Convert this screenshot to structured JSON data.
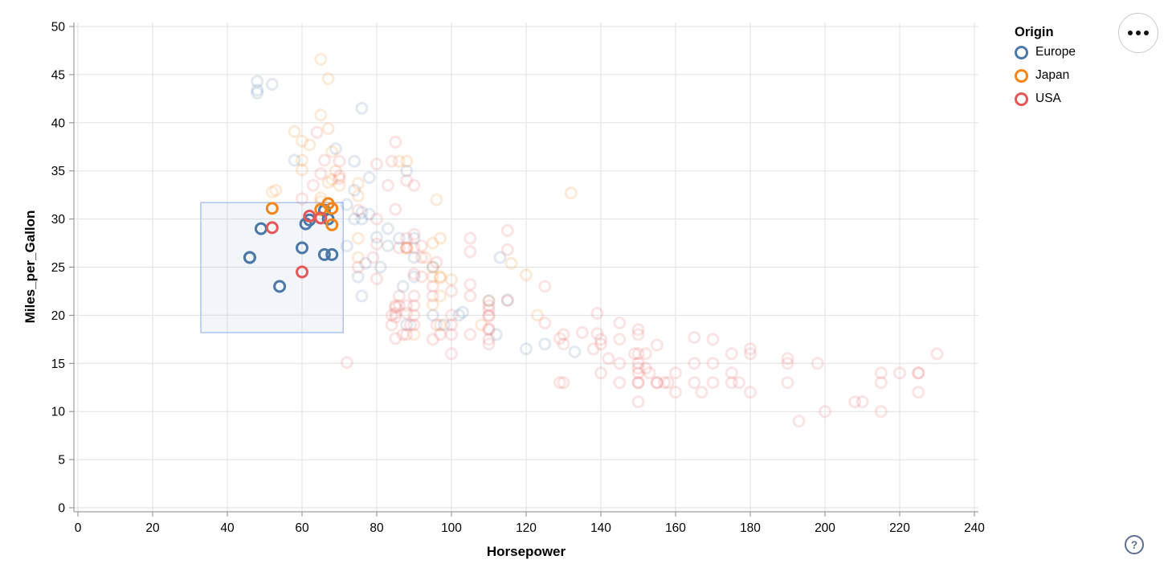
{
  "page": {
    "background": "#ffffff"
  },
  "widgets": {
    "actions_menu_icon": "ellipsis",
    "help_icon_glyph": "?"
  },
  "chart_data": {
    "type": "scatter",
    "title": "",
    "xlabel": "Horsepower",
    "ylabel": "Miles_per_Gallon",
    "xlim": [
      0,
      240
    ],
    "ylim": [
      0,
      50
    ],
    "x_ticks": [
      0,
      20,
      40,
      60,
      80,
      100,
      120,
      140,
      160,
      180,
      200,
      220,
      240
    ],
    "y_ticks": [
      0,
      5,
      10,
      15,
      20,
      25,
      30,
      35,
      40,
      45,
      50
    ],
    "grid": true,
    "legend_position": "top-right",
    "point_shape": "open-circle",
    "unselected_opacity": 0.16,
    "selected_opacity": 1.0,
    "brush": {
      "hp_range": [
        32.9,
        71.0
      ],
      "mpg_range": [
        18.2,
        31.7
      ],
      "fill": "#6e96d8",
      "fill_opacity": 0.09,
      "stroke": "#aec3ef"
    },
    "legend": {
      "title": "Origin",
      "entries": [
        {
          "label": "Europe",
          "color": "#4c78a8"
        },
        {
          "label": "Japan",
          "color": "#f58518"
        },
        {
          "label": "USA",
          "color": "#e45756"
        }
      ]
    },
    "series": [
      {
        "name": "Europe",
        "color": "#4c78a8",
        "points": [
          [
            46,
            26
          ],
          [
            46,
            26
          ],
          [
            49,
            29
          ],
          [
            54,
            23
          ],
          [
            60,
            27
          ],
          [
            61,
            29.5
          ],
          [
            62,
            29.9
          ],
          [
            66,
            30.9
          ],
          [
            67,
            30
          ],
          [
            66,
            26.3
          ],
          [
            68,
            26.3
          ],
          [
            48,
            44.3
          ],
          [
            48,
            43.4
          ],
          [
            48,
            43.1
          ],
          [
            52,
            44
          ],
          [
            76,
            41.5
          ],
          [
            69,
            37.3
          ],
          [
            58,
            36.1
          ],
          [
            74,
            36
          ],
          [
            88,
            35
          ],
          [
            78,
            34.3
          ],
          [
            74,
            33
          ],
          [
            72,
            31.5
          ],
          [
            76,
            30.7
          ],
          [
            78,
            30.5
          ],
          [
            76,
            30
          ],
          [
            74,
            30
          ],
          [
            83,
            29
          ],
          [
            86,
            28
          ],
          [
            90,
            28
          ],
          [
            80,
            28.1
          ],
          [
            83,
            27.2
          ],
          [
            72,
            27.2
          ],
          [
            90,
            26
          ],
          [
            113,
            26
          ],
          [
            77,
            25.4
          ],
          [
            95,
            25
          ],
          [
            81,
            25
          ],
          [
            75,
            24
          ],
          [
            90,
            24
          ],
          [
            87,
            23
          ],
          [
            76,
            22
          ],
          [
            110,
            21.5
          ],
          [
            115,
            21.6
          ],
          [
            102,
            20
          ],
          [
            103,
            20.3
          ],
          [
            95,
            20
          ],
          [
            98,
            19
          ],
          [
            88,
            19
          ],
          [
            112,
            18
          ],
          [
            125,
            17
          ],
          [
            120,
            16.5
          ],
          [
            133,
            16.2
          ]
        ]
      },
      {
        "name": "Japan",
        "color": "#f58518",
        "points": [
          [
            52,
            31.1
          ],
          [
            65,
            31
          ],
          [
            67,
            31.6
          ],
          [
            68,
            31.1
          ],
          [
            68,
            29.4
          ],
          [
            65,
            46.6
          ],
          [
            67,
            44.6
          ],
          [
            65,
            40.8
          ],
          [
            67,
            39.4
          ],
          [
            58,
            39.1
          ],
          [
            60,
            38.1
          ],
          [
            62,
            37.7
          ],
          [
            68,
            37
          ],
          [
            69,
            35
          ],
          [
            60,
            36.1
          ],
          [
            60,
            35.1
          ],
          [
            70,
            33.5
          ],
          [
            68,
            34.1
          ],
          [
            67,
            33.8
          ],
          [
            53,
            33
          ],
          [
            52,
            32.8
          ],
          [
            65,
            32.2
          ],
          [
            65,
            31.8
          ],
          [
            75,
            33.7
          ],
          [
            75,
            32.4
          ],
          [
            96,
            32
          ],
          [
            88,
            36
          ],
          [
            86,
            36
          ],
          [
            132,
            32.7
          ],
          [
            95,
            27.5
          ],
          [
            97,
            28
          ],
          [
            93,
            26
          ],
          [
            95,
            25
          ],
          [
            95,
            24
          ],
          [
            88,
            27
          ],
          [
            88,
            27
          ],
          [
            97,
            24
          ],
          [
            75,
            28
          ],
          [
            75,
            26
          ],
          [
            116,
            25.4
          ],
          [
            120,
            24.2
          ],
          [
            100,
            23.7
          ],
          [
            97,
            23.9
          ],
          [
            97,
            22
          ],
          [
            95,
            21.1
          ],
          [
            110,
            21.5
          ],
          [
            108,
            19
          ],
          [
            97,
            19
          ],
          [
            90,
            18
          ],
          [
            123,
            20
          ]
        ]
      },
      {
        "name": "USA",
        "color": "#e45756",
        "points": [
          [
            52,
            29.1
          ],
          [
            60,
            24.5
          ],
          [
            62,
            30.3
          ],
          [
            65,
            30.1
          ],
          [
            64,
            39
          ],
          [
            85,
            38
          ],
          [
            84,
            36
          ],
          [
            66,
            36.1
          ],
          [
            70,
            36
          ],
          [
            80,
            35.7
          ],
          [
            65,
            34.7
          ],
          [
            70,
            34.5
          ],
          [
            70,
            34.2
          ],
          [
            88,
            34
          ],
          [
            90,
            33.5
          ],
          [
            83,
            33.5
          ],
          [
            63,
            33.5
          ],
          [
            60,
            32.1
          ],
          [
            85,
            31
          ],
          [
            75,
            30.9
          ],
          [
            80,
            30
          ],
          [
            90,
            28.4
          ],
          [
            115,
            28.8
          ],
          [
            105,
            28
          ],
          [
            88,
            28
          ],
          [
            92,
            27.2
          ],
          [
            90,
            27
          ],
          [
            88,
            27
          ],
          [
            86,
            27
          ],
          [
            80,
            27.4
          ],
          [
            115,
            26.8
          ],
          [
            105,
            26.6
          ],
          [
            92,
            26
          ],
          [
            79,
            26
          ],
          [
            96,
            25.5
          ],
          [
            75,
            25
          ],
          [
            125,
            23
          ],
          [
            90,
            24.3
          ],
          [
            92,
            24
          ],
          [
            80,
            23.8
          ],
          [
            95,
            23
          ],
          [
            105,
            23.2
          ],
          [
            100,
            22.5
          ],
          [
            105,
            22
          ],
          [
            95,
            22
          ],
          [
            86,
            22
          ],
          [
            90,
            22
          ],
          [
            88,
            21
          ],
          [
            110,
            21
          ],
          [
            90,
            21
          ],
          [
            85,
            21
          ],
          [
            86,
            21
          ],
          [
            110,
            20.6
          ],
          [
            85,
            20.8
          ],
          [
            100,
            20
          ],
          [
            110,
            20
          ],
          [
            90,
            20
          ],
          [
            84,
            20
          ],
          [
            85,
            20.2
          ],
          [
            88,
            20.2
          ],
          [
            85,
            19.8
          ],
          [
            100,
            19
          ],
          [
            96,
            19
          ],
          [
            90,
            19
          ],
          [
            89,
            19
          ],
          [
            84,
            19
          ],
          [
            110,
            18.6
          ],
          [
            110,
            18.5
          ],
          [
            105,
            18
          ],
          [
            100,
            18
          ],
          [
            97,
            18
          ],
          [
            88,
            18
          ],
          [
            87,
            18
          ],
          [
            85,
            17.6
          ],
          [
            95,
            17.5
          ],
          [
            110,
            17.5
          ],
          [
            100,
            16
          ],
          [
            72,
            15.1
          ],
          [
            129,
            17.6
          ],
          [
            130,
            17
          ],
          [
            110,
            17
          ],
          [
            115,
            21.5
          ],
          [
            125,
            19.2
          ],
          [
            110,
            19.9
          ],
          [
            139,
            20.2
          ],
          [
            145,
            19.2
          ],
          [
            150,
            18.5
          ],
          [
            130,
            18
          ],
          [
            150,
            18
          ],
          [
            139,
            18.1
          ],
          [
            135,
            18.2
          ],
          [
            140,
            17.5
          ],
          [
            170,
            17.5
          ],
          [
            165,
            17.7
          ],
          [
            140,
            17
          ],
          [
            152,
            16
          ],
          [
            150,
            16
          ],
          [
            149,
            16
          ],
          [
            175,
            16
          ],
          [
            180,
            16
          ],
          [
            180,
            16.5
          ],
          [
            230,
            16
          ],
          [
            155,
            16.9
          ],
          [
            138,
            16.5
          ],
          [
            142,
            15.5
          ],
          [
            190,
            15.5
          ],
          [
            165,
            15
          ],
          [
            145,
            15
          ],
          [
            150,
            15
          ],
          [
            170,
            15
          ],
          [
            190,
            15
          ],
          [
            198,
            15
          ],
          [
            152,
            14.5
          ],
          [
            150,
            14.5
          ],
          [
            140,
            14
          ],
          [
            150,
            14
          ],
          [
            160,
            14
          ],
          [
            153,
            14
          ],
          [
            175,
            14
          ],
          [
            215,
            14
          ],
          [
            220,
            14
          ],
          [
            225,
            14
          ],
          [
            225,
            14
          ],
          [
            145,
            13
          ],
          [
            150,
            13
          ],
          [
            150,
            13
          ],
          [
            155,
            13
          ],
          [
            155,
            13
          ],
          [
            130,
            13
          ],
          [
            165,
            13
          ],
          [
            158,
            13
          ],
          [
            157,
            13
          ],
          [
            170,
            13
          ],
          [
            175,
            13
          ],
          [
            177,
            13
          ],
          [
            190,
            13
          ],
          [
            215,
            13
          ],
          [
            129,
            13
          ],
          [
            160,
            12
          ],
          [
            167,
            12
          ],
          [
            180,
            12
          ],
          [
            225,
            12
          ],
          [
            145,
            17.5
          ],
          [
            150,
            11
          ],
          [
            210,
            11
          ],
          [
            208,
            11
          ],
          [
            200,
            10
          ],
          [
            215,
            10
          ],
          [
            193,
            9
          ]
        ]
      }
    ]
  }
}
